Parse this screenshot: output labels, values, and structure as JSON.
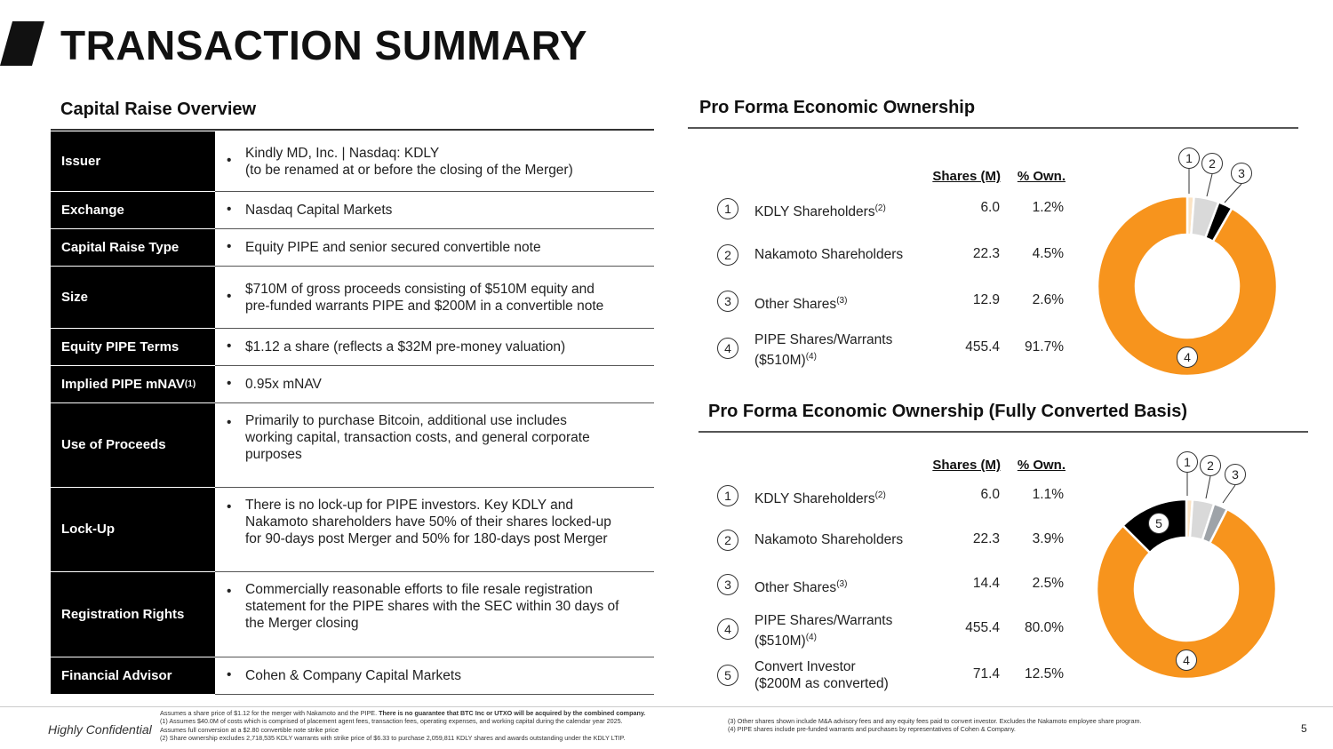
{
  "title": "TRANSACTION SUMMARY",
  "capital_raise": {
    "title": "Capital Raise Overview",
    "rows": [
      {
        "label": "Issuer",
        "lines": [
          "Kindly MD, Inc. | Nasdaq: KDLY",
          "(to be renamed at or before the closing of the Merger)"
        ]
      },
      {
        "label": "Exchange",
        "lines": [
          "Nasdaq Capital Markets"
        ]
      },
      {
        "label": "Capital Raise Type",
        "lines": [
          "Equity PIPE and senior secured convertible note"
        ]
      },
      {
        "label": "Size",
        "lines": [
          "$710M of gross proceeds consisting of $510M equity and",
          "pre-funded warrants PIPE and $200M in a convertible note"
        ]
      },
      {
        "label": "Equity PIPE Terms",
        "lines": [
          "$1.12 a share (reflects a $32M pre-money valuation)"
        ]
      },
      {
        "label": "Implied PIPE mNAV",
        "label_sup": "(1)",
        "lines": [
          "0.95x mNAV"
        ]
      },
      {
        "label": "Use of Proceeds",
        "lines": [
          "Primarily to purchase Bitcoin, additional use includes",
          "working capital, transaction costs, and general corporate",
          "purposes"
        ]
      },
      {
        "label": "Lock-Up",
        "lines": [
          "There is no lock-up for PIPE investors. Key KDLY and",
          "Nakamoto shareholders have 50% of their shares locked-up",
          "for 90-days post Merger and 50% for 180-days post Merger"
        ]
      },
      {
        "label": "Registration Rights",
        "lines": [
          "Commercially reasonable efforts to file resale registration",
          "statement for the PIPE shares with the SEC within 30 days of",
          "the Merger closing"
        ]
      },
      {
        "label": "Financial Advisor",
        "lines": [
          "Cohen & Company Capital Markets"
        ]
      }
    ]
  },
  "ownership": [
    {
      "title": "Pro Forma Economic Ownership",
      "col_shares": "Shares (M)",
      "col_own": "% Own.",
      "rows": [
        {
          "n": "1",
          "label": [
            "KDLY Shareholders"
          ],
          "sup": "(2)",
          "shares": "6.0",
          "own": "1.2%",
          "color": "#fbe3c4"
        },
        {
          "n": "2",
          "label": [
            "Nakamoto Shareholders"
          ],
          "sup": "",
          "shares": "22.3",
          "own": "4.5%",
          "color": "#d9d9d9"
        },
        {
          "n": "3",
          "label": [
            "Other Shares"
          ],
          "sup": "(3)",
          "shares": "12.9",
          "own": "2.6%",
          "color": "#000000"
        },
        {
          "n": "4",
          "label": [
            "PIPE Shares/Warrants",
            "($510M)"
          ],
          "sup": "(4)",
          "shares": "455.4",
          "own": "91.7%",
          "color": "#f7941d"
        }
      ]
    },
    {
      "title": "Pro Forma Economic Ownership (Fully Converted Basis)",
      "col_shares": "Shares (M)",
      "col_own": "% Own.",
      "rows": [
        {
          "n": "1",
          "label": [
            "KDLY Shareholders"
          ],
          "sup": "(2)",
          "shares": "6.0",
          "own": "1.1%",
          "color": "#fbe3c4"
        },
        {
          "n": "2",
          "label": [
            "Nakamoto Shareholders"
          ],
          "sup": "",
          "shares": "22.3",
          "own": "3.9%",
          "color": "#d9d9d9"
        },
        {
          "n": "3",
          "label": [
            "Other Shares"
          ],
          "sup": "(3)",
          "shares": "14.4",
          "own": "2.5%",
          "color": "#9ea3a8"
        },
        {
          "n": "4",
          "label": [
            "PIPE Shares/Warrants",
            "($510M)"
          ],
          "sup": "(4)",
          "shares": "455.4",
          "own": "80.0%",
          "color": "#f7941d"
        },
        {
          "n": "5",
          "label": [
            "Convert Investor",
            "($200M as converted)"
          ],
          "sup": "",
          "shares": "71.4",
          "own": "12.5%",
          "color": "#000000"
        }
      ]
    }
  ],
  "footer": {
    "confidential": "Highly Confidential",
    "page": "5",
    "notes_left": [
      "Assumes a share price of $1.12 for the merger with Nakamoto and the PIPE. ",
      "(1) Assumes $40.0M of costs which is comprised of placement agent fees, transaction fees, operating expenses, and working capital during the calendar year 2025.",
      "Assumes full conversion at a $2.80 convertible note strike price",
      "(2) Share ownership excludes 2,718,535 KDLY warrants with strike price of $6.33 to purchase 2,059,811 KDLY shares and awards outstanding under the KDLY LTIP."
    ],
    "notes_bold": "There is no guarantee that BTC Inc or UTXO will be acquired by the combined company.",
    "notes_right": [
      "(3) Other shares shown include M&A advisory fees and any equity fees paid to convert investor. Excludes the Nakamoto employee share program.",
      "(4) PIPE shares include pre-funded warrants and purchases by representatives of Cohen & Company."
    ]
  }
}
